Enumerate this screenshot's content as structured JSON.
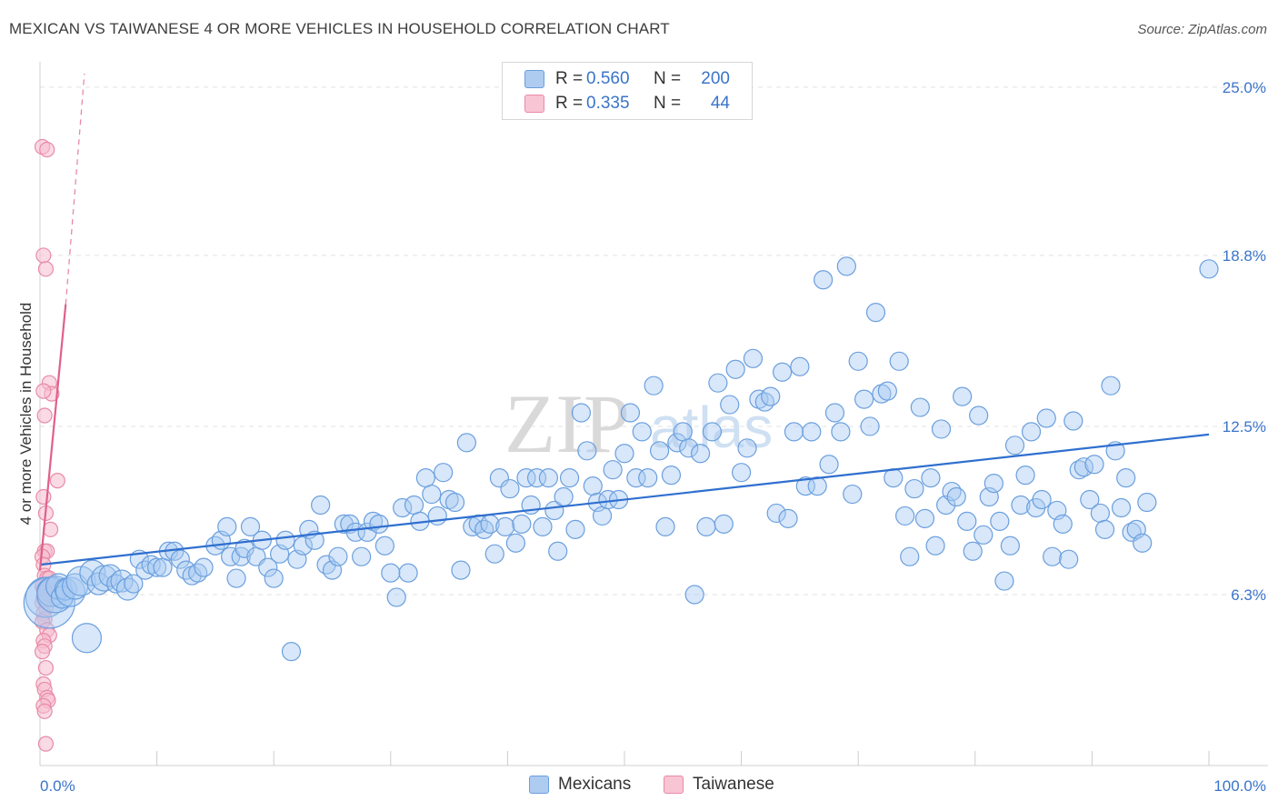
{
  "title": "MEXICAN VS TAIWANESE 4 OR MORE VEHICLES IN HOUSEHOLD CORRELATION CHART",
  "source": "Source: ZipAtlas.com",
  "watermark": {
    "left": "ZIP",
    "right": "atlas"
  },
  "legend": {
    "rows": [
      {
        "r_label": "R =",
        "r_value": "0.560",
        "n_label": "N =",
        "n_value": "200",
        "color": "#9ec3ef",
        "border": "#6a9fde"
      },
      {
        "r_label": "R =",
        "r_value": "0.335",
        "n_label": "N =",
        "n_value": "44",
        "color": "#f6b9cb",
        "border": "#e98aa8"
      }
    ]
  },
  "bottom_legend": [
    {
      "label": "Mexicans",
      "color": "#9ec3ef",
      "border": "#6a9fde"
    },
    {
      "label": "Taiwanese",
      "color": "#f6b9cb",
      "border": "#e98aa8"
    }
  ],
  "chart_data": {
    "type": "scatter",
    "title": "MEXICAN VS TAIWANESE 4 OR MORE VEHICLES IN HOUSEHOLD CORRELATION CHART",
    "xlabel": "",
    "ylabel": "4 or more Vehicles in Household",
    "xlim": [
      0,
      100
    ],
    "ylim": [
      0,
      25.8
    ],
    "x_tick_labels": [
      "0.0%",
      "100.0%"
    ],
    "y_ticks": [
      6.3,
      12.5,
      18.8,
      25.0
    ],
    "y_tick_labels": [
      "6.3%",
      "12.5%",
      "18.8%",
      "25.0%"
    ],
    "grid": true,
    "series": [
      {
        "name": "Mexicans",
        "color": "#6a9fde",
        "fill": "#a9c9f1",
        "trend": {
          "x0": 0,
          "y0": 7.4,
          "x1": 100,
          "y1": 12.2
        },
        "points": [
          [
            0.5,
            6.2,
            2.2
          ],
          [
            0.8,
            6.0,
            2.8
          ],
          [
            1.0,
            6.4,
            1.6
          ],
          [
            1.3,
            6.3,
            2.0
          ],
          [
            1.6,
            6.6,
            1.4
          ],
          [
            1.9,
            6.2,
            1.2
          ],
          [
            2.2,
            6.5,
            1.2
          ],
          [
            2.6,
            6.4,
            1.6
          ],
          [
            3.0,
            6.6,
            1.4
          ],
          [
            3.5,
            6.8,
            1.6
          ],
          [
            4.0,
            4.7,
            1.6
          ],
          [
            4.5,
            7.1,
            1.4
          ],
          [
            5.0,
            6.7,
            1.2
          ],
          [
            5.5,
            6.9,
            1.4
          ],
          [
            6.0,
            7.0,
            1.2
          ],
          [
            6.5,
            6.7,
            1.0
          ],
          [
            7.0,
            6.8,
            1.2
          ],
          [
            7.5,
            6.5,
            1.2
          ],
          [
            8.0,
            6.7,
            1.0
          ],
          [
            8.5,
            7.6,
            1.0
          ],
          [
            9.0,
            7.2,
            1.0
          ],
          [
            9.5,
            7.4,
            1.0
          ],
          [
            10.0,
            7.3,
            1.0
          ],
          [
            10.5,
            7.3,
            1.0
          ],
          [
            11.0,
            7.9,
            1.0
          ],
          [
            11.5,
            7.9,
            1.0
          ],
          [
            12.0,
            7.6,
            1.0
          ],
          [
            12.5,
            7.2,
            1.0
          ],
          [
            13.0,
            7.0,
            1.0
          ],
          [
            13.5,
            7.1,
            1.0
          ],
          [
            14.0,
            7.3,
            1.0
          ],
          [
            15.0,
            8.1,
            1.0
          ],
          [
            15.5,
            8.3,
            1.0
          ],
          [
            16.0,
            8.8,
            1.0
          ],
          [
            16.3,
            7.7,
            1.0
          ],
          [
            16.8,
            6.9,
            1.0
          ],
          [
            17.2,
            7.7,
            1.0
          ],
          [
            17.5,
            8.0,
            1.0
          ],
          [
            18.0,
            8.8,
            1.0
          ],
          [
            18.5,
            7.7,
            1.0
          ],
          [
            19.0,
            8.3,
            1.0
          ],
          [
            19.5,
            7.3,
            1.0
          ],
          [
            20.0,
            6.9,
            1.0
          ],
          [
            20.5,
            7.8,
            1.0
          ],
          [
            21.0,
            8.3,
            1.0
          ],
          [
            21.5,
            4.2,
            1.0
          ],
          [
            22.0,
            7.6,
            1.0
          ],
          [
            22.5,
            8.1,
            1.0
          ],
          [
            23.0,
            8.7,
            1.0
          ],
          [
            23.5,
            8.3,
            1.0
          ],
          [
            24.0,
            9.6,
            1.0
          ],
          [
            24.5,
            7.4,
            1.0
          ],
          [
            25.0,
            7.2,
            1.0
          ],
          [
            25.5,
            7.7,
            1.0
          ],
          [
            26.0,
            8.9,
            1.0
          ],
          [
            26.5,
            8.9,
            1.0
          ],
          [
            27.0,
            8.6,
            1.0
          ],
          [
            27.5,
            7.7,
            1.0
          ],
          [
            28.0,
            8.6,
            1.0
          ],
          [
            28.5,
            9.0,
            1.0
          ],
          [
            29.0,
            8.9,
            1.0
          ],
          [
            29.5,
            8.1,
            1.0
          ],
          [
            30.0,
            7.1,
            1.0
          ],
          [
            30.5,
            6.2,
            1.0
          ],
          [
            31.0,
            9.5,
            1.0
          ],
          [
            31.5,
            7.1,
            1.0
          ],
          [
            32.0,
            9.6,
            1.0
          ],
          [
            32.5,
            9.0,
            1.0
          ],
          [
            33.0,
            10.6,
            1.0
          ],
          [
            33.5,
            10.0,
            1.0
          ],
          [
            34.0,
            9.2,
            1.0
          ],
          [
            34.5,
            10.8,
            1.0
          ],
          [
            35.0,
            9.8,
            1.0
          ],
          [
            35.5,
            9.7,
            1.0
          ],
          [
            36.0,
            7.2,
            1.0
          ],
          [
            36.5,
            11.9,
            1.0
          ],
          [
            37.0,
            8.8,
            1.0
          ],
          [
            37.5,
            8.9,
            1.0
          ],
          [
            38.0,
            8.7,
            1.0
          ],
          [
            38.5,
            8.9,
            1.0
          ],
          [
            38.9,
            7.8,
            1.0
          ],
          [
            39.3,
            10.6,
            1.0
          ],
          [
            39.8,
            8.8,
            1.0
          ],
          [
            40.2,
            10.2,
            1.0
          ],
          [
            40.7,
            8.2,
            1.0
          ],
          [
            41.2,
            8.9,
            1.0
          ],
          [
            41.6,
            10.6,
            1.0
          ],
          [
            42.0,
            9.6,
            1.0
          ],
          [
            42.5,
            10.6,
            1.0
          ],
          [
            43.0,
            8.8,
            1.0
          ],
          [
            43.5,
            10.6,
            1.0
          ],
          [
            44.0,
            9.4,
            1.0
          ],
          [
            44.3,
            7.9,
            1.0
          ],
          [
            44.8,
            9.9,
            1.0
          ],
          [
            45.3,
            10.6,
            1.0
          ],
          [
            45.8,
            8.7,
            1.0
          ],
          [
            46.3,
            13.0,
            1.0
          ],
          [
            46.8,
            11.6,
            1.0
          ],
          [
            47.3,
            10.3,
            1.0
          ],
          [
            47.7,
            9.7,
            1.0
          ],
          [
            48.1,
            9.2,
            1.0
          ],
          [
            48.6,
            9.8,
            1.0
          ],
          [
            49.0,
            10.9,
            1.0
          ],
          [
            49.5,
            9.8,
            1.0
          ],
          [
            50.0,
            11.5,
            1.0
          ],
          [
            50.5,
            13.0,
            1.0
          ],
          [
            51.0,
            10.6,
            1.0
          ],
          [
            51.5,
            12.3,
            1.0
          ],
          [
            52.0,
            10.6,
            1.0
          ],
          [
            52.5,
            14.0,
            1.0
          ],
          [
            53.0,
            11.6,
            1.0
          ],
          [
            53.5,
            8.8,
            1.0
          ],
          [
            54.0,
            10.7,
            1.0
          ],
          [
            54.5,
            11.9,
            1.0
          ],
          [
            55.0,
            12.3,
            1.0
          ],
          [
            55.5,
            11.7,
            1.0
          ],
          [
            56.0,
            6.3,
            1.0
          ],
          [
            56.5,
            11.5,
            1.0
          ],
          [
            57.0,
            8.8,
            1.0
          ],
          [
            57.5,
            12.3,
            1.0
          ],
          [
            58.0,
            14.1,
            1.0
          ],
          [
            58.5,
            8.9,
            1.0
          ],
          [
            59.0,
            13.3,
            1.0
          ],
          [
            59.5,
            14.6,
            1.0
          ],
          [
            60.0,
            10.8,
            1.0
          ],
          [
            60.5,
            11.7,
            1.0
          ],
          [
            61.0,
            15.0,
            1.0
          ],
          [
            61.5,
            13.5,
            1.0
          ],
          [
            62.0,
            13.4,
            1.0
          ],
          [
            62.5,
            13.6,
            1.0
          ],
          [
            63.0,
            9.3,
            1.0
          ],
          [
            63.5,
            14.5,
            1.0
          ],
          [
            64.0,
            9.1,
            1.0
          ],
          [
            64.5,
            12.3,
            1.0
          ],
          [
            65.0,
            14.7,
            1.0
          ],
          [
            65.5,
            10.3,
            1.0
          ],
          [
            66.0,
            12.3,
            1.0
          ],
          [
            66.5,
            10.3,
            1.0
          ],
          [
            67.0,
            17.9,
            1.0
          ],
          [
            67.5,
            11.1,
            1.0
          ],
          [
            68.0,
            13.0,
            1.0
          ],
          [
            68.5,
            12.3,
            1.0
          ],
          [
            69.0,
            18.4,
            1.0
          ],
          [
            69.5,
            10.0,
            1.0
          ],
          [
            70.0,
            14.9,
            1.0
          ],
          [
            70.5,
            13.5,
            1.0
          ],
          [
            71.0,
            12.5,
            1.0
          ],
          [
            71.5,
            16.7,
            1.0
          ],
          [
            72.0,
            13.7,
            1.0
          ],
          [
            72.5,
            13.8,
            1.0
          ],
          [
            73.0,
            10.6,
            1.0
          ],
          [
            73.5,
            14.9,
            1.0
          ],
          [
            74.0,
            9.2,
            1.0
          ],
          [
            74.4,
            7.7,
            1.0
          ],
          [
            74.8,
            10.2,
            1.0
          ],
          [
            75.3,
            13.2,
            1.0
          ],
          [
            75.7,
            9.1,
            1.0
          ],
          [
            76.2,
            10.6,
            1.0
          ],
          [
            76.6,
            8.1,
            1.0
          ],
          [
            77.1,
            12.4,
            1.0
          ],
          [
            77.5,
            9.6,
            1.0
          ],
          [
            78.0,
            10.1,
            1.0
          ],
          [
            78.4,
            9.9,
            1.0
          ],
          [
            78.9,
            13.6,
            1.0
          ],
          [
            79.3,
            9.0,
            1.0
          ],
          [
            79.8,
            7.9,
            1.0
          ],
          [
            80.3,
            12.9,
            1.0
          ],
          [
            80.7,
            8.5,
            1.0
          ],
          [
            81.2,
            9.9,
            1.0
          ],
          [
            81.6,
            10.4,
            1.0
          ],
          [
            82.1,
            9.0,
            1.0
          ],
          [
            82.5,
            6.8,
            1.0
          ],
          [
            83.0,
            8.1,
            1.0
          ],
          [
            83.4,
            11.8,
            1.0
          ],
          [
            83.9,
            9.6,
            1.0
          ],
          [
            84.3,
            10.7,
            1.0
          ],
          [
            84.8,
            12.3,
            1.0
          ],
          [
            85.2,
            9.5,
            1.0
          ],
          [
            85.7,
            9.8,
            1.0
          ],
          [
            86.1,
            12.8,
            1.0
          ],
          [
            86.6,
            7.7,
            1.0
          ],
          [
            87.0,
            9.4,
            1.0
          ],
          [
            87.5,
            8.9,
            1.0
          ],
          [
            88.0,
            7.6,
            1.0
          ],
          [
            88.4,
            12.7,
            1.0
          ],
          [
            88.9,
            10.9,
            1.0
          ],
          [
            89.3,
            11.0,
            1.0
          ],
          [
            89.8,
            9.8,
            1.0
          ],
          [
            90.2,
            11.1,
            1.0
          ],
          [
            90.7,
            9.3,
            1.0
          ],
          [
            91.1,
            8.7,
            1.0
          ],
          [
            91.6,
            14.0,
            1.0
          ],
          [
            92.0,
            11.6,
            1.0
          ],
          [
            92.5,
            9.5,
            1.0
          ],
          [
            92.9,
            10.6,
            1.0
          ],
          [
            93.4,
            8.6,
            1.0
          ],
          [
            93.8,
            8.7,
            1.0
          ],
          [
            94.3,
            8.2,
            1.0
          ],
          [
            94.7,
            9.7,
            1.0
          ],
          [
            100.0,
            18.3,
            1.0
          ]
        ]
      },
      {
        "name": "Taiwanese",
        "color": "#e98aa8",
        "fill": "#f6bccd",
        "trend": {
          "x0": 0,
          "y0": 7.2,
          "x1": 2.2,
          "y1": 17.0,
          "dash_x1": 3.8,
          "dash_y1": 25.5
        },
        "points": [
          [
            0.2,
            22.8
          ],
          [
            0.6,
            22.7
          ],
          [
            0.3,
            18.8
          ],
          [
            0.5,
            18.3
          ],
          [
            0.8,
            14.1
          ],
          [
            1.0,
            13.7
          ],
          [
            0.3,
            13.8
          ],
          [
            0.4,
            12.9
          ],
          [
            1.5,
            10.5
          ],
          [
            0.3,
            9.9
          ],
          [
            0.5,
            9.3
          ],
          [
            0.9,
            8.7
          ],
          [
            0.4,
            7.9
          ],
          [
            0.6,
            7.9
          ],
          [
            0.2,
            7.7
          ],
          [
            0.3,
            7.4
          ],
          [
            0.4,
            7.0
          ],
          [
            0.6,
            6.9
          ],
          [
            0.8,
            6.9
          ],
          [
            1.0,
            6.7
          ],
          [
            0.2,
            6.6
          ],
          [
            0.3,
            6.5
          ],
          [
            0.5,
            6.4
          ],
          [
            0.7,
            6.3
          ],
          [
            0.3,
            6.2
          ],
          [
            0.4,
            6.1
          ],
          [
            0.2,
            6.0
          ],
          [
            0.5,
            5.8
          ],
          [
            0.3,
            5.6
          ],
          [
            0.4,
            5.4
          ],
          [
            0.2,
            5.3
          ],
          [
            0.6,
            5.0
          ],
          [
            0.8,
            4.8
          ],
          [
            0.3,
            4.6
          ],
          [
            0.4,
            4.4
          ],
          [
            0.2,
            4.2
          ],
          [
            0.5,
            3.6
          ],
          [
            0.3,
            3.0
          ],
          [
            0.4,
            2.8
          ],
          [
            0.6,
            2.5
          ],
          [
            0.7,
            2.4
          ],
          [
            0.3,
            2.2
          ],
          [
            0.4,
            2.0
          ],
          [
            0.5,
            0.8
          ]
        ]
      }
    ]
  }
}
